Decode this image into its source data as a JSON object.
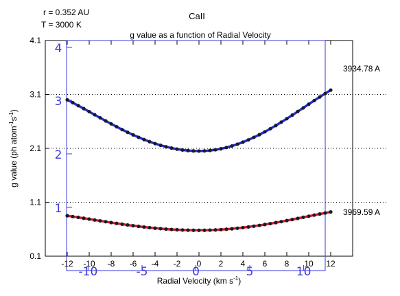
{
  "header": {
    "r_label": "r = 0.352 AU",
    "t_label": "T = 3000 K",
    "species": "CaII",
    "title": "g value as a function of Radial Velocity"
  },
  "chart_data": {
    "type": "line",
    "xlabel_main": "Radial Velocity (km s",
    "xlabel_exp": "-1",
    "xlabel_close": ")",
    "ylabel_main": "g value (ph atom",
    "ylabel_exp1": "-1",
    "ylabel_mid": "s",
    "ylabel_exp2": "-1",
    "ylabel_close": ")",
    "xlim": [
      -14,
      14
    ],
    "ylim": [
      0.1,
      4.1
    ],
    "x_ticks": [
      "-12",
      "-10",
      "-8",
      "-6",
      "-4",
      "-2",
      "0",
      "2",
      "4",
      "6",
      "8",
      "10",
      "12"
    ],
    "y_ticks": [
      "0.1",
      "1.1",
      "2.1",
      "3.1",
      "4.1"
    ],
    "overlay_x_ticks": [
      "-10",
      "-5",
      "0",
      "5",
      "10"
    ],
    "overlay_y_ticks": [
      "1",
      "2",
      "3",
      "4"
    ],
    "grid": "horizontal dotted",
    "series": [
      {
        "name": "3934.78 A",
        "color": "#1f2fd6",
        "ymin": 2.05,
        "yleft": 3.0,
        "yright": 3.18
      },
      {
        "name": "3969.59 A",
        "color": "#e02020",
        "ymin": 0.58,
        "yleft": 0.85,
        "yright": 0.92
      }
    ]
  }
}
